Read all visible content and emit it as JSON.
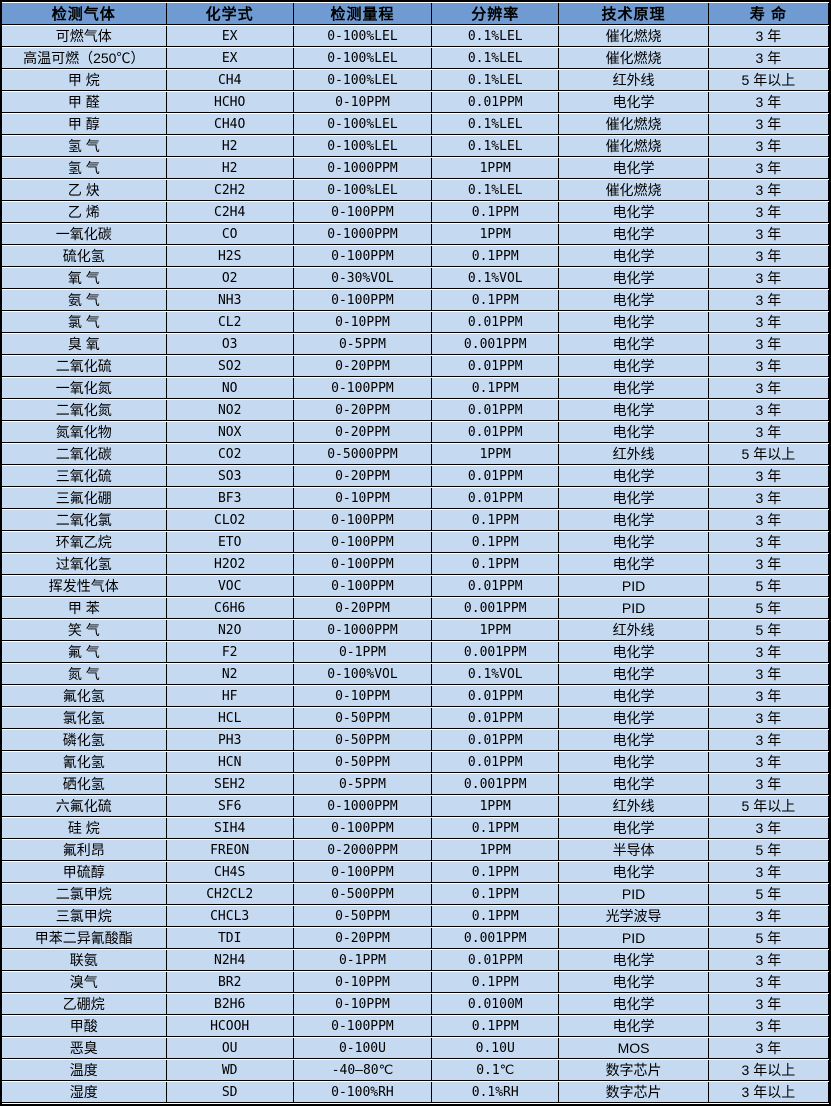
{
  "colors": {
    "header_bg": "#6f9bd2",
    "row_bg": "#c5d9f1",
    "border": "#000000",
    "row_gap": "#ffffff",
    "text": "#000000"
  },
  "chart_data": {
    "type": "table",
    "columns": [
      "检测气体",
      "化学式",
      "检测量程",
      "分辨率",
      "技术原理",
      "寿 命"
    ],
    "rows": [
      [
        "可燃气体",
        "EX",
        "0-100%LEL",
        "0.1%LEL",
        "催化燃烧",
        "3 年"
      ],
      [
        "高温可燃（250℃）",
        "EX",
        "0-100%LEL",
        "0.1%LEL",
        "催化燃烧",
        "3 年"
      ],
      [
        "甲 烷",
        "CH4",
        "0-100%LEL",
        "0.1%LEL",
        "红外线",
        "5 年以上"
      ],
      [
        "甲 醛",
        "HCHO",
        "0-10PPM",
        "0.01PPM",
        "电化学",
        "3 年"
      ],
      [
        "甲 醇",
        "CH4O",
        "0-100%LEL",
        "0.1%LEL",
        "催化燃烧",
        "3 年"
      ],
      [
        "氢 气",
        "H2",
        "0-100%LEL",
        "0.1%LEL",
        "催化燃烧",
        "3 年"
      ],
      [
        "氢 气",
        "H2",
        "0-1000PPM",
        "1PPM",
        "电化学",
        "3 年"
      ],
      [
        "乙 炔",
        "C2H2",
        "0-100%LEL",
        "0.1%LEL",
        "催化燃烧",
        "3 年"
      ],
      [
        "乙 烯",
        "C2H4",
        "0-100PPM",
        "0.1PPM",
        "电化学",
        "3 年"
      ],
      [
        "一氧化碳",
        "CO",
        "0-1000PPM",
        "1PPM",
        "电化学",
        "3 年"
      ],
      [
        "硫化氢",
        "H2S",
        "0-100PPM",
        "0.1PPM",
        "电化学",
        "3 年"
      ],
      [
        "氧 气",
        "O2",
        "0-30%VOL",
        "0.1%VOL",
        "电化学",
        "3 年"
      ],
      [
        "氨 气",
        "NH3",
        "0-100PPM",
        "0.1PPM",
        "电化学",
        "3 年"
      ],
      [
        "氯 气",
        "CL2",
        "0-10PPM",
        "0.01PPM",
        "电化学",
        "3 年"
      ],
      [
        "臭 氧",
        "O3",
        "0-5PPM",
        "0.001PPM",
        "电化学",
        "3 年"
      ],
      [
        "二氧化硫",
        "SO2",
        "0-20PPM",
        "0.01PPM",
        "电化学",
        "3 年"
      ],
      [
        "一氧化氮",
        "NO",
        "0-100PPM",
        "0.1PPM",
        "电化学",
        "3 年"
      ],
      [
        "二氧化氮",
        "NO2",
        "0-20PPM",
        "0.01PPM",
        "电化学",
        "3 年"
      ],
      [
        "氮氧化物",
        "NOX",
        "0-20PPM",
        "0.01PPM",
        "电化学",
        "3 年"
      ],
      [
        "二氧化碳",
        "CO2",
        "0-5000PPM",
        "1PPM",
        "红外线",
        "5 年以上"
      ],
      [
        "三氧化硫",
        "SO3",
        "0-20PPM",
        "0.01PPM",
        "电化学",
        "3 年"
      ],
      [
        "三氟化硼",
        "BF3",
        "0-10PPM",
        "0.01PPM",
        "电化学",
        "3 年"
      ],
      [
        "二氧化氯",
        "CLO2",
        "0-100PPM",
        "0.1PPM",
        "电化学",
        "3 年"
      ],
      [
        "环氧乙烷",
        "ETO",
        "0-100PPM",
        "0.1PPM",
        "电化学",
        "3 年"
      ],
      [
        "过氧化氢",
        "H2O2",
        "0-100PPM",
        "0.1PPM",
        "电化学",
        "3 年"
      ],
      [
        "挥发性气体",
        "VOC",
        "0-100PPM",
        "0.01PPM",
        "PID",
        "5 年"
      ],
      [
        "甲 苯",
        "C6H6",
        "0-20PPM",
        "0.001PPM",
        "PID",
        "5 年"
      ],
      [
        "笑 气",
        "N2O",
        "0-1000PPM",
        "1PPM",
        "红外线",
        "5 年"
      ],
      [
        "氟 气",
        "F2",
        "0-1PPM",
        "0.001PPM",
        "电化学",
        "3 年"
      ],
      [
        "氮 气",
        "N2",
        "0-100%VOL",
        "0.1%VOL",
        "电化学",
        "3 年"
      ],
      [
        "氟化氢",
        "HF",
        "0-10PPM",
        "0.01PPM",
        "电化学",
        "3 年"
      ],
      [
        "氯化氢",
        "HCL",
        "0-50PPM",
        "0.01PPM",
        "电化学",
        "3 年"
      ],
      [
        "磷化氢",
        "PH3",
        "0-50PPM",
        "0.01PPM",
        "电化学",
        "3 年"
      ],
      [
        "氰化氢",
        "HCN",
        "0-50PPM",
        "0.01PPM",
        "电化学",
        "3 年"
      ],
      [
        "硒化氢",
        "SEH2",
        "0-5PPM",
        "0.001PPM",
        "电化学",
        "3 年"
      ],
      [
        "六氟化硫",
        "SF6",
        "0-1000PPM",
        "1PPM",
        "红外线",
        "5 年以上"
      ],
      [
        "硅 烷",
        "SIH4",
        "0-100PPM",
        "0.1PPM",
        "电化学",
        "3 年"
      ],
      [
        "氟利昂",
        "FREON",
        "0-2000PPM",
        "1PPM",
        "半导体",
        "5 年"
      ],
      [
        "甲硫醇",
        "CH4S",
        "0-100PPM",
        "0.1PPM",
        "电化学",
        "3 年"
      ],
      [
        "二氯甲烷",
        "CH2CL2",
        "0-500PPM",
        "0.1PPM",
        "PID",
        "5 年"
      ],
      [
        "三氯甲烷",
        "CHCL3",
        "0-50PPM",
        "0.1PPM",
        "光学波导",
        "3 年"
      ],
      [
        "甲苯二异氰酸酯",
        "TDI",
        "0-20PPM",
        "0.001PPM",
        "PID",
        "5 年"
      ],
      [
        "联氨",
        "N2H4",
        "0-1PPM",
        "0.01PPM",
        "电化学",
        "3 年"
      ],
      [
        "溴气",
        "BR2",
        "0-10PPM",
        "0.1PPM",
        "电化学",
        "3 年"
      ],
      [
        "乙硼烷",
        "B2H6",
        "0-10PPM",
        "0.0100M",
        "电化学",
        "3 年"
      ],
      [
        "甲酸",
        "HCOOH",
        "0-100PPM",
        "0.1PPM",
        "电化学",
        "3 年"
      ],
      [
        "恶臭",
        "OU",
        "0-100U",
        "0.10U",
        "MOS",
        "3 年"
      ],
      [
        "温度",
        "WD",
        "-40—80℃",
        "0.1℃",
        "数字芯片",
        "3 年以上"
      ],
      [
        "湿度",
        "SD",
        "0-100%RH",
        "0.1%RH",
        "数字芯片",
        "3 年以上"
      ]
    ]
  }
}
